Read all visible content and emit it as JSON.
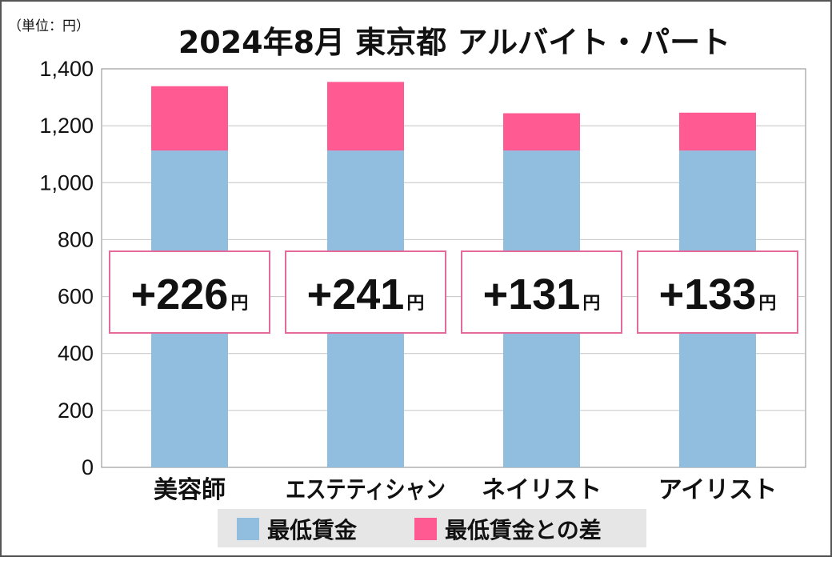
{
  "chart_data": {
    "type": "bar",
    "stacked": true,
    "title": "2024年8月 東京都 アルバイト・パート",
    "unit_label": "（単位：円）",
    "categories": [
      "美容師",
      "エステティシャン",
      "ネイリスト",
      "アイリスト"
    ],
    "series": [
      {
        "name": "最低賃金",
        "values": [
          1113,
          1113,
          1113,
          1113
        ],
        "color": "#91bddf"
      },
      {
        "name": "最低賃金との差",
        "values": [
          226,
          241,
          131,
          133
        ],
        "color": "#ff5a92"
      }
    ],
    "diff_labels": [
      "+226",
      "+241",
      "+131",
      "+133"
    ],
    "diff_unit": "円",
    "ylim": [
      0,
      1400
    ],
    "yticks": [
      0,
      200,
      400,
      600,
      800,
      1000,
      1200,
      1400
    ],
    "ytick_labels": [
      "0",
      "200",
      "400",
      "600",
      "800",
      "1,000",
      "1,200",
      "1,400"
    ],
    "grid": true,
    "legend_position": "bottom"
  }
}
